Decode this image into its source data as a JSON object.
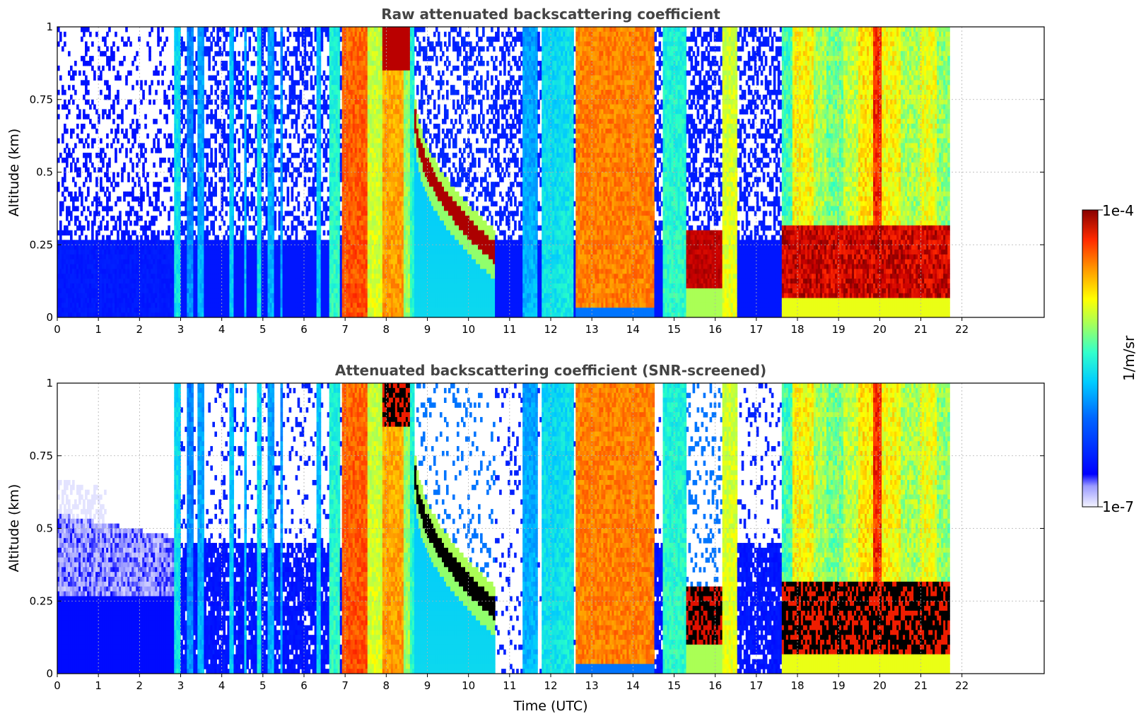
{
  "chart_data": [
    {
      "type": "heatmap",
      "title": "Raw attenuated backscattering coefficient",
      "xlabel": "",
      "ylabel": "Altitude (km)",
      "xlim": [
        0,
        24
      ],
      "ylim": [
        0,
        1
      ],
      "x_ticks": [
        0,
        1,
        2,
        3,
        4,
        5,
        6,
        7,
        8,
        9,
        10,
        11,
        12,
        13,
        14,
        15,
        16,
        17,
        18,
        19,
        20,
        21,
        22
      ],
      "x_tick_labels": [
        "0",
        "1",
        "2",
        "3",
        "4",
        "5",
        "6",
        "7",
        "8",
        "9",
        "10",
        "11",
        "12",
        "13",
        "14",
        "15",
        "16",
        "17",
        "18",
        "19",
        "20",
        "21",
        "22"
      ],
      "y_ticks": [
        0,
        0.25,
        0.5,
        0.75,
        1
      ],
      "y_tick_labels": [
        "0",
        "0.25",
        "0.5",
        "0.75",
        "1"
      ],
      "grid": true,
      "data_end_time": 21.7,
      "colorbar": "jet-log",
      "features": [
        {
          "kind": "noise_background",
          "x": [
            0,
            2.85
          ],
          "boundary_altitude": 0.27
        },
        {
          "kind": "band",
          "x": [
            2.85,
            3.0
          ],
          "level": 0.45
        },
        {
          "kind": "band",
          "x": [
            6.9,
            7.55
          ],
          "level": 0.85
        },
        {
          "kind": "arc_layer",
          "x": [
            8.7,
            10.6
          ],
          "altitude": [
            0.7,
            0.22
          ],
          "level": 0.98
        },
        {
          "kind": "dense_cloud",
          "x": [
            12.6,
            14.5
          ],
          "level": 0.82
        },
        {
          "kind": "low_layer",
          "x": [
            15.3,
            16.1
          ],
          "altitude": 0.22,
          "level": 0.95
        },
        {
          "kind": "low_layer",
          "x": [
            17.6,
            21.7
          ],
          "altitude": 0.2,
          "level": 0.97
        }
      ]
    },
    {
      "type": "heatmap",
      "title": "Attenuated backscattering coefficient (SNR-screened)",
      "xlabel": "Time (UTC)",
      "ylabel": "Altitude (km)",
      "xlim": [
        0,
        24
      ],
      "ylim": [
        0,
        1
      ],
      "x_ticks": [
        0,
        1,
        2,
        3,
        4,
        5,
        6,
        7,
        8,
        9,
        10,
        11,
        12,
        13,
        14,
        15,
        16,
        17,
        18,
        19,
        20,
        21,
        22
      ],
      "x_tick_labels": [
        "0",
        "1",
        "2",
        "3",
        "4",
        "5",
        "6",
        "7",
        "8",
        "9",
        "10",
        "11",
        "12",
        "13",
        "14",
        "15",
        "16",
        "17",
        "18",
        "19",
        "20",
        "21",
        "22"
      ],
      "y_ticks": [
        0,
        0.25,
        0.5,
        0.75,
        1
      ],
      "y_tick_labels": [
        "0",
        "0.25",
        "0.5",
        "0.75",
        "1"
      ],
      "grid": true,
      "data_end_time": 21.7,
      "colorbar": "jet-log",
      "screened": true,
      "features": [
        {
          "kind": "boundary_layer",
          "x": [
            0,
            2.85
          ],
          "altitude": 0.55
        },
        {
          "kind": "arc_layer",
          "x": [
            8.7,
            10.6
          ],
          "altitude": [
            0.7,
            0.22
          ],
          "level": 1.0
        },
        {
          "kind": "dense_cloud",
          "x": [
            12.6,
            14.5
          ],
          "level": 0.82
        },
        {
          "kind": "low_layer",
          "x": [
            17.6,
            21.7
          ],
          "altitude": 0.2,
          "level": 1.0
        }
      ]
    }
  ],
  "colorbar": {
    "label": "1/m/sr",
    "max_label": "1e-4",
    "min_label": "1e-7",
    "range": [
      1e-07,
      0.0001
    ],
    "scale": "log",
    "colormap": "jet"
  }
}
